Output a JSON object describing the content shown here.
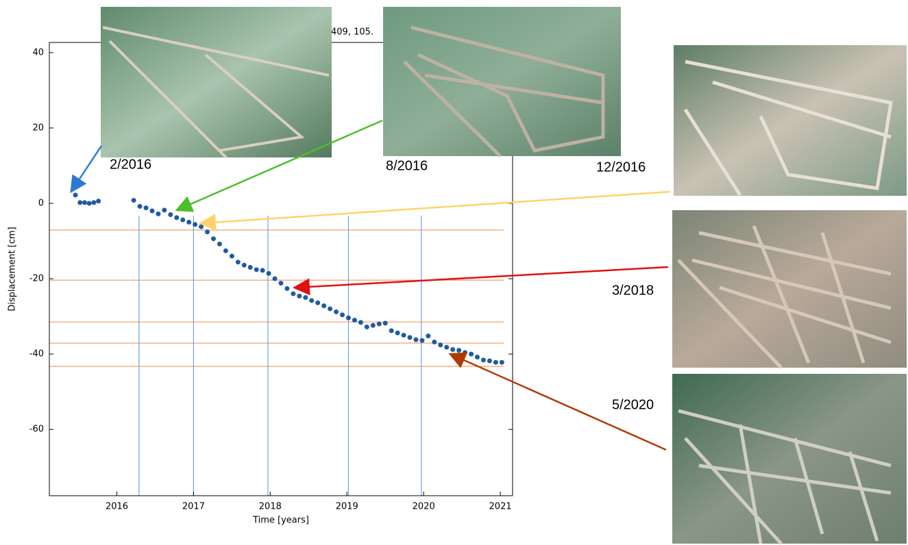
{
  "chart_data": {
    "type": "scatter",
    "title": "409, 105.",
    "x_label": "Time [years]",
    "y_label": "Displacement [cm]",
    "xlim": [
      2015.12,
      2021.16
    ],
    "ylim": [
      -77.6,
      42.7
    ],
    "xticks": [
      2016,
      2017,
      2018,
      2019,
      2020,
      2021
    ],
    "yticks": [
      -60,
      -40,
      -20,
      0,
      20,
      40
    ],
    "color": "#1f5aa6",
    "x": [
      2015.46,
      2015.52,
      2015.58,
      2015.64,
      2015.7,
      2015.76,
      2016.22,
      2016.3,
      2016.38,
      2016.46,
      2016.54,
      2016.62,
      2016.7,
      2016.78,
      2016.86,
      2016.94,
      2017.02,
      2017.1,
      2017.18,
      2017.26,
      2017.34,
      2017.42,
      2017.5,
      2017.58,
      2017.66,
      2017.74,
      2017.82,
      2017.9,
      2017.98,
      2018.06,
      2018.14,
      2018.22,
      2018.3,
      2018.38,
      2018.46,
      2018.54,
      2018.62,
      2018.7,
      2018.78,
      2018.86,
      2018.94,
      2019.02,
      2019.1,
      2019.18,
      2019.26,
      2019.34,
      2019.42,
      2019.5,
      2019.58,
      2019.66,
      2019.74,
      2019.82,
      2019.9,
      2019.98,
      2020.06,
      2020.14,
      2020.22,
      2020.3,
      2020.38,
      2020.46,
      2020.54,
      2020.62,
      2020.7,
      2020.78,
      2020.86,
      2020.94,
      2021.02
    ],
    "values": [
      2.2,
      0.2,
      0.2,
      0.0,
      0.2,
      0.6,
      0.8,
      -0.8,
      -1.2,
      -2.0,
      -2.8,
      -1.8,
      -3.0,
      -3.8,
      -4.4,
      -5.0,
      -5.6,
      -6.2,
      -7.6,
      -9.4,
      -10.8,
      -12.6,
      -14.0,
      -15.6,
      -16.4,
      -17.0,
      -17.6,
      -17.8,
      -18.6,
      -20.0,
      -21.2,
      -22.6,
      -24.0,
      -24.6,
      -25.0,
      -25.8,
      -26.4,
      -27.2,
      -28.0,
      -28.8,
      -29.6,
      -30.4,
      -31.0,
      -31.6,
      -32.8,
      -32.4,
      -32.0,
      -31.8,
      -33.8,
      -34.4,
      -35.0,
      -35.6,
      -36.2,
      -36.4,
      -35.2,
      -36.8,
      -37.6,
      -38.2,
      -38.8,
      -39.0,
      -39.6,
      -40.0,
      -40.8,
      -41.6,
      -41.8,
      -42.2,
      -42.2
    ],
    "reference_x": [
      2016.29,
      2017.0,
      2017.97,
      2019.02,
      2019.97
    ],
    "reference_x_color": "#6fa3dc",
    "reference_y": [
      -7.1,
      -20.4,
      -31.5,
      -37.1,
      -43.3
    ],
    "reference_y_color": "#f4b183",
    "annotations": [
      "2/2016",
      "8/2016",
      "12/2016",
      "3/2018",
      "5/2020"
    ]
  }
}
